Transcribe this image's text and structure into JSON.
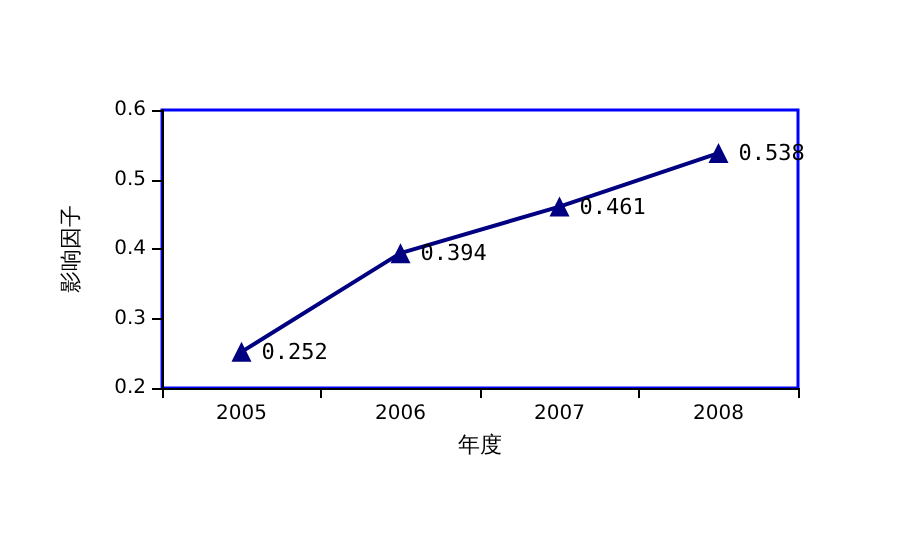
{
  "chart_data": {
    "type": "line",
    "xlabel": "年度",
    "ylabel": "影响因子",
    "categories": [
      "2005",
      "2006",
      "2007",
      "2008"
    ],
    "series": [
      {
        "color": "#000080",
        "values": [
          0.252,
          0.394,
          0.461,
          0.538
        ]
      }
    ],
    "ylim": [
      0.2,
      0.6
    ],
    "yticks": [
      0.2,
      0.3,
      0.4,
      0.5,
      0.6
    ],
    "grid": false,
    "marker": "triangle",
    "line_style": "solid",
    "data_labels": true
  }
}
